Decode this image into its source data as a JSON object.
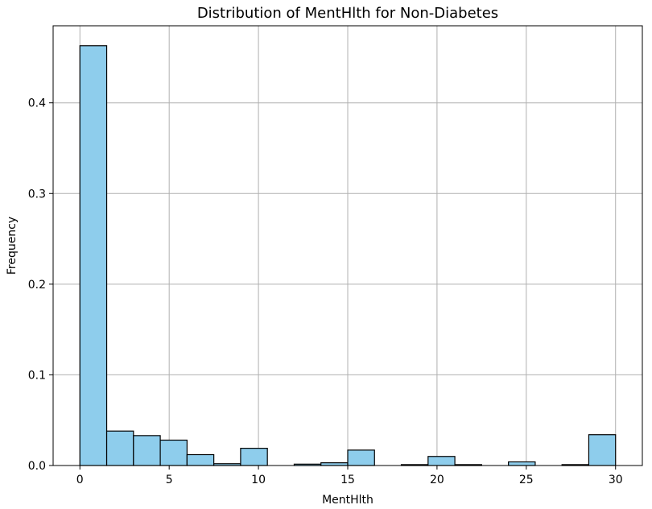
{
  "chart_data": {
    "type": "bar",
    "title": "Distribution of MentHlth for Non-Diabetes",
    "xlabel": "MentHlth",
    "ylabel": "Frequency",
    "xlim": [
      -1.5,
      31.5
    ],
    "ylim": [
      0,
      0.485
    ],
    "xticks": [
      0,
      5,
      10,
      15,
      20,
      25,
      30
    ],
    "yticks": [
      0.0,
      0.1,
      0.2,
      0.3,
      0.4
    ],
    "ytick_labels": [
      "0.0",
      "0.1",
      "0.2",
      "0.3",
      "0.4"
    ],
    "grid": true,
    "bar_color": "#8ecdec",
    "edge_color": "#000000",
    "bins": [
      {
        "start": 0.0,
        "end": 1.5,
        "value": 0.463
      },
      {
        "start": 1.5,
        "end": 3.0,
        "value": 0.038
      },
      {
        "start": 3.0,
        "end": 4.5,
        "value": 0.033
      },
      {
        "start": 4.5,
        "end": 6.0,
        "value": 0.028
      },
      {
        "start": 6.0,
        "end": 7.5,
        "value": 0.012
      },
      {
        "start": 7.5,
        "end": 9.0,
        "value": 0.002
      },
      {
        "start": 9.0,
        "end": 10.5,
        "value": 0.019
      },
      {
        "start": 10.5,
        "end": 12.0,
        "value": 0.0
      },
      {
        "start": 12.0,
        "end": 13.5,
        "value": 0.0015
      },
      {
        "start": 13.5,
        "end": 15.0,
        "value": 0.003
      },
      {
        "start": 15.0,
        "end": 16.5,
        "value": 0.017
      },
      {
        "start": 16.5,
        "end": 18.0,
        "value": 0.0
      },
      {
        "start": 18.0,
        "end": 19.5,
        "value": 0.001
      },
      {
        "start": 19.5,
        "end": 21.0,
        "value": 0.01
      },
      {
        "start": 21.0,
        "end": 22.5,
        "value": 0.001
      },
      {
        "start": 22.5,
        "end": 24.0,
        "value": 0.0
      },
      {
        "start": 24.0,
        "end": 25.5,
        "value": 0.004
      },
      {
        "start": 25.5,
        "end": 27.0,
        "value": 0.0
      },
      {
        "start": 27.0,
        "end": 28.5,
        "value": 0.001
      },
      {
        "start": 28.5,
        "end": 30.0,
        "value": 0.034
      }
    ]
  }
}
